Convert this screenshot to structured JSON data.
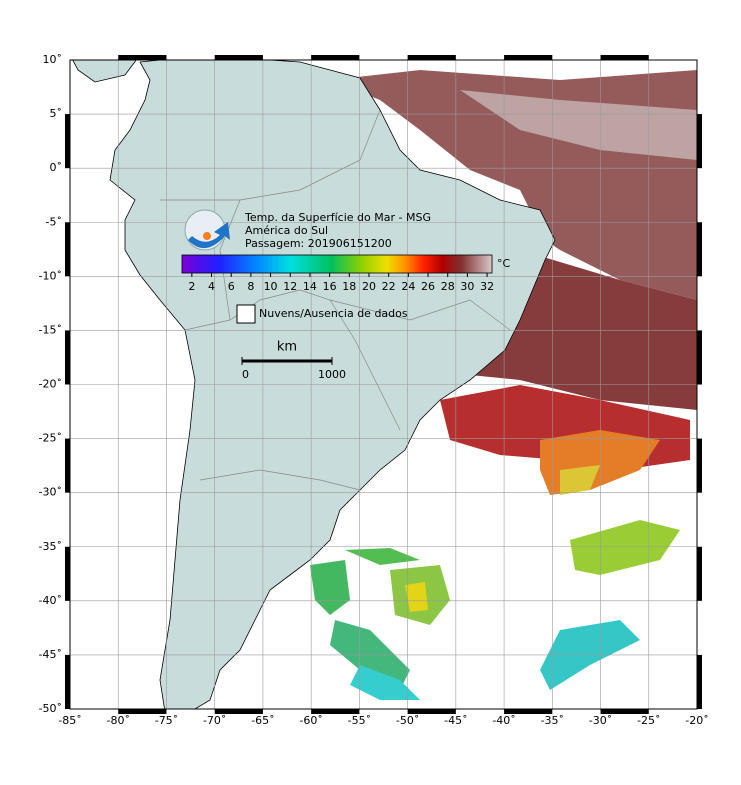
{
  "map": {
    "title_lines": [
      "Temp. da Superfície do Mar - MSG",
      "América do Sul",
      "Passagem: 201906151200"
    ],
    "xlim": [
      -85,
      -20
    ],
    "ylim": [
      -50,
      10
    ],
    "xticks": [
      {
        "value": -85,
        "label": "-85˚"
      },
      {
        "value": -80,
        "label": "-80˚"
      },
      {
        "value": -75,
        "label": "-75˚"
      },
      {
        "value": -70,
        "label": "-70˚"
      },
      {
        "value": -65,
        "label": "-65˚"
      },
      {
        "value": -60,
        "label": "-60˚"
      },
      {
        "value": -55,
        "label": "-55˚"
      },
      {
        "value": -50,
        "label": "-50˚"
      },
      {
        "value": -45,
        "label": "-45˚"
      },
      {
        "value": -40,
        "label": "-40˚"
      },
      {
        "value": -35,
        "label": "-35˚"
      },
      {
        "value": -30,
        "label": "-30˚"
      },
      {
        "value": -25,
        "label": "-25˚"
      },
      {
        "value": -20,
        "label": "-20˚"
      }
    ],
    "yticks": [
      {
        "value": 10,
        "label": "10˚"
      },
      {
        "value": 5,
        "label": "5˚"
      },
      {
        "value": 0,
        "label": "0˚"
      },
      {
        "value": -5,
        "label": "-5˚"
      },
      {
        "value": -10,
        "label": "-10˚"
      },
      {
        "value": -15,
        "label": "-15˚"
      },
      {
        "value": -20,
        "label": "-20˚"
      },
      {
        "value": -25,
        "label": "-25˚"
      },
      {
        "value": -30,
        "label": "-30˚"
      },
      {
        "value": -35,
        "label": "-35˚"
      },
      {
        "value": -40,
        "label": "-40˚"
      },
      {
        "value": -45,
        "label": "-45˚"
      },
      {
        "value": -50,
        "label": "-50˚"
      }
    ],
    "grid": true,
    "colorbar": {
      "range": [
        1,
        32.5
      ],
      "ticks": [
        2,
        4,
        6,
        8,
        10,
        12,
        14,
        16,
        18,
        20,
        22,
        24,
        26,
        28,
        30,
        32
      ],
      "unit": "°C"
    },
    "legend": "Nuvens/Ausencia de dados",
    "scale_bar": {
      "unit": "km",
      "ticks": [
        0,
        1000
      ]
    }
  }
}
